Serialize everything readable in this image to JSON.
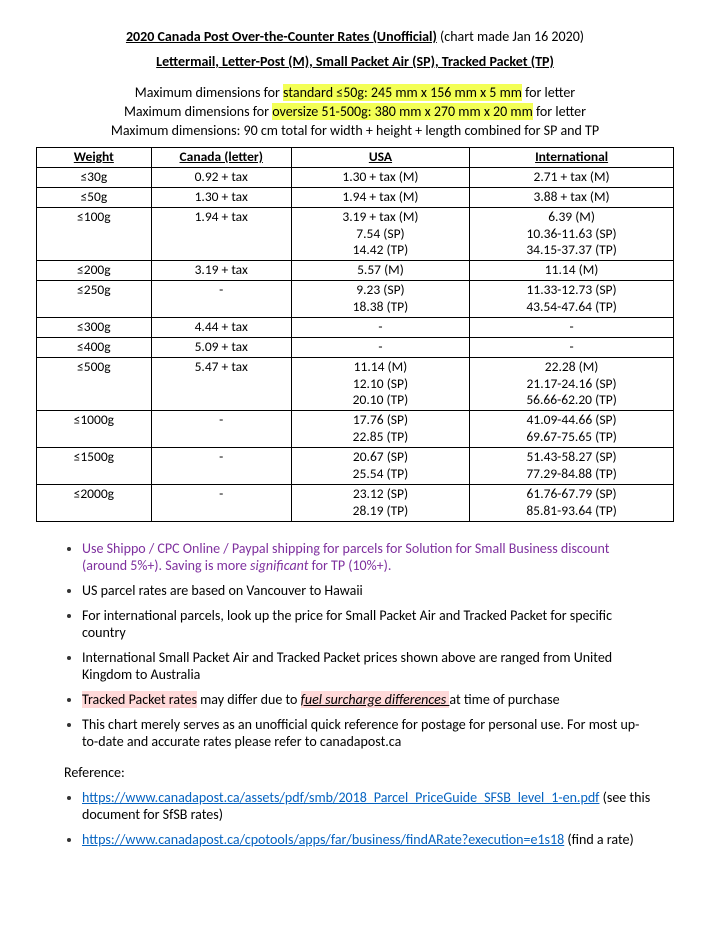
{
  "header": {
    "title_main": "2020 Canada Post Over-the-Counter Rates (Unofficial)",
    "title_note": " (chart made Jan 16 2020)",
    "subtitle": "Lettermail, Letter-Post (M), Small Packet Air (SP), Tracked Packet (TP)",
    "dim1_pre": "Maximum dimensions for ",
    "dim1_hl": "standard ≤50g: 245 mm x 156 mm x 5 mm",
    "dim1_post": " for letter",
    "dim2_pre": "Maximum dimensions for ",
    "dim2_hl": "oversize 51-500g: 380 mm x 270 mm x 20 mm",
    "dim2_post": " for letter",
    "dim3": "Maximum dimensions: 90 cm total for width + height + length combined for SP and TP"
  },
  "table": {
    "headers": {
      "w": "Weight",
      "ca": "Canada (letter)",
      "us": "USA",
      "int": "International"
    },
    "rows": [
      {
        "w": "≤30g",
        "ca": "0.92 + tax",
        "us": "1.30 + tax (M)",
        "int": "2.71 + tax (M)"
      },
      {
        "w": "≤50g",
        "ca": "1.30 + tax",
        "us": "1.94 + tax (M)",
        "int": "3.88 + tax (M)"
      },
      {
        "w": "≤100g",
        "ca": "1.94 + tax",
        "us": "3.19 + tax (M)\n7.54 (SP)\n14.42 (TP)",
        "int": "6.39 (M)\n10.36-11.63 (SP)\n34.15-37.37 (TP)"
      },
      {
        "w": "≤200g",
        "ca": "3.19 + tax",
        "us": "5.57 (M)",
        "int": "11.14 (M)"
      },
      {
        "w": "≤250g",
        "ca": "-",
        "us": "9.23 (SP)\n18.38 (TP)",
        "int": "11.33-12.73 (SP)\n43.54-47.64 (TP)"
      },
      {
        "w": "≤300g",
        "ca": "4.44 + tax",
        "us": "-",
        "int": "-"
      },
      {
        "w": "≤400g",
        "ca": "5.09 + tax",
        "us": "-",
        "int": "-"
      },
      {
        "w": "≤500g",
        "ca": "5.47 + tax",
        "us": "11.14 (M)\n12.10 (SP)\n20.10 (TP)",
        "int": "22.28 (M)\n21.17-24.16 (SP)\n56.66-62.20 (TP)"
      },
      {
        "w": "≤1000g",
        "ca": "-",
        "us": "17.76 (SP)\n22.85 (TP)",
        "int": "41.09-44.66 (SP)\n69.67-75.65 (TP)"
      },
      {
        "w": "≤1500g",
        "ca": "-",
        "us": "20.67 (SP)\n25.54 (TP)",
        "int": "51.43-58.27 (SP)\n77.29-84.88 (TP)"
      },
      {
        "w": "≤2000g",
        "ca": "-",
        "us": "23.12 (SP)\n28.19 (TP)",
        "int": "61.76-67.79 (SP)\n85.81-93.64 (TP)"
      }
    ]
  },
  "notes": {
    "n1a": "Use Shippo / CPC Online / Paypal shipping for parcels for Solution for Small Business discount (around 5%+). Saving is more ",
    "n1b": "significant",
    "n1c": " for TP (10%+).",
    "n2": "US parcel rates are based on Vancouver to Hawaii",
    "n3": "For international parcels, look up the price for Small Packet Air and Tracked Packet for specific country",
    "n4": "International Small Packet Air and Tracked Packet prices shown above are ranged from United Kingdom to Australia",
    "n5a": "Tracked Packet rates",
    "n5b": " may differ due to ",
    "n5c": "fuel surcharge differences ",
    "n5d": "at time of purchase",
    "n6": "This chart merely serves as an unofficial quick reference for postage for personal use. For most up-to-date and accurate rates please refer to canadapost.ca"
  },
  "reference": {
    "head": "Reference:",
    "r1_url": "https://www.canadapost.ca/assets/pdf/smb/2018_Parcel_PriceGuide_SFSB_level_1-en.pdf",
    "r1_note": " (see this document for SfSB rates)",
    "r2_url": "https://www.canadapost.ca/cpotools/apps/far/business/findARate?execution=e1s18",
    "r2_note": " (find a rate)"
  }
}
